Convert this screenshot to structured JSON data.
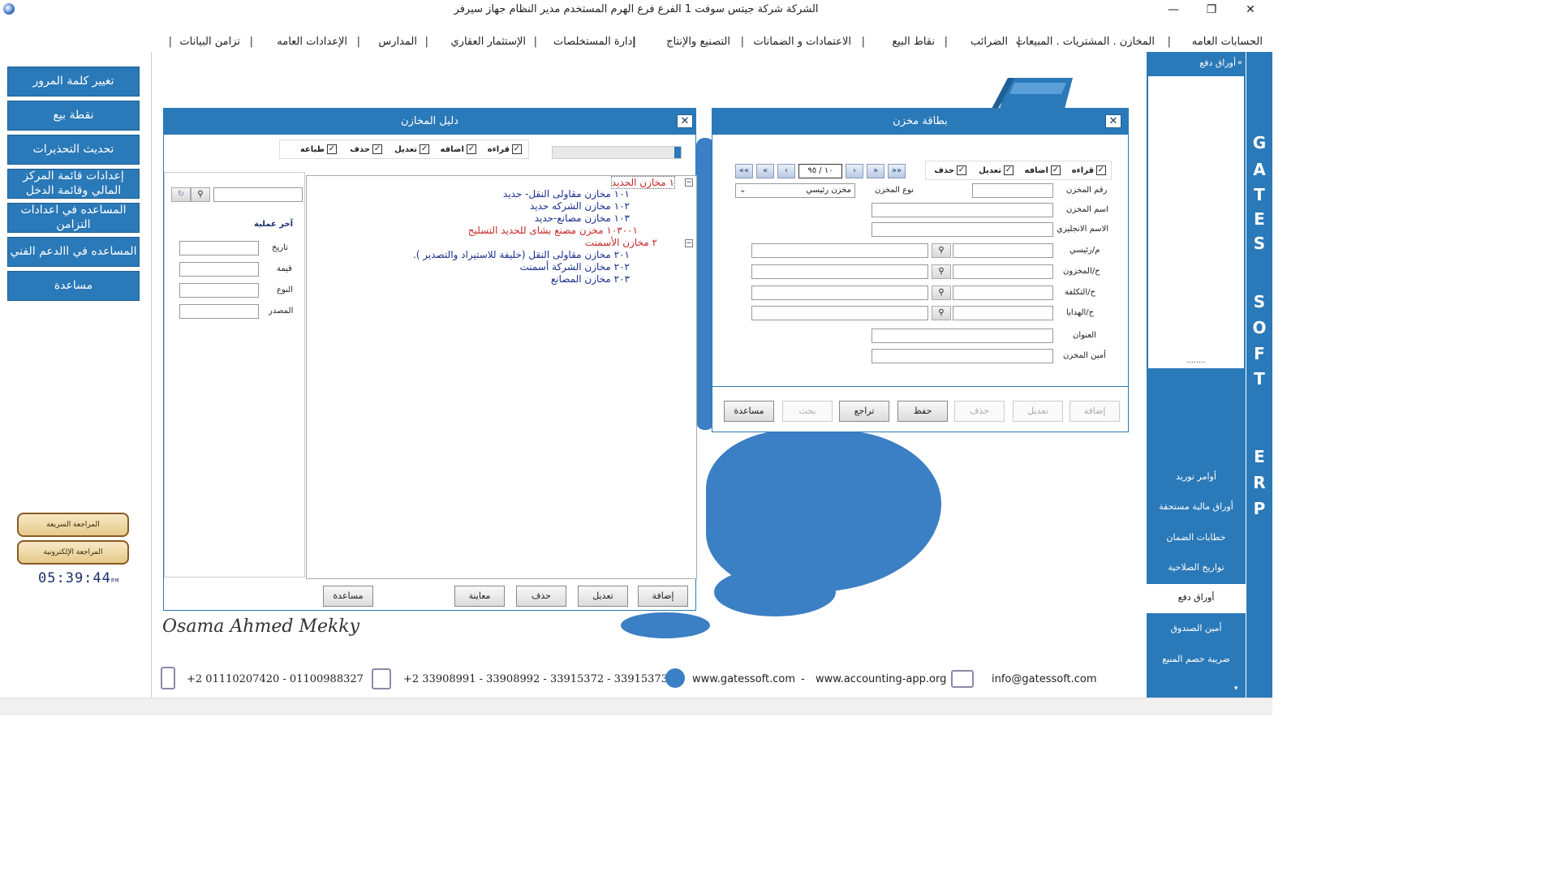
{
  "titlebar": {
    "title": "الشركة شركة جيتس سوفت 1   الفرع فرع الهرم    المستخدم مدير النظام  جهاز سيرفر"
  },
  "menu": [
    "الحسابات العامه",
    "المخازن . المشتريات . المبيعات",
    "الضرائب",
    "نقاط البيع",
    "الاعتمادات و الضمانات",
    "التصنيع والإنتاج",
    "إدارة المستخلصات",
    "الإستثمار العقاري",
    "المدارس",
    "الإعدادات العامه",
    "تزامن البيانات"
  ],
  "left_panel": {
    "buttons": [
      "تغيير كلمة المرور",
      "نقطة بيع",
      "تحديث التحذيرات",
      "إعدادات قائمة المركز المالي وقائمة الدخل",
      "المساعده في اعدادات التزامن",
      "المساعده في االدعم الفني",
      "مساعدة"
    ],
    "quick_review": "المراجعة السريعة",
    "electronic_review": "المراجعة الإلكترونية",
    "clock": "05:39:44",
    "clock_suffix": "PM"
  },
  "right_panel": {
    "header": "أوراق دفع",
    "items": [
      "أوامر توريد",
      "أوراق مالية مستحقة",
      "خطابات الضمان",
      "تواريخ الصلاحية",
      "أوراق دفع",
      "أمين الصندوق",
      "ضريبة خصم المنبع"
    ],
    "dots": "........",
    "brand_letters": [
      "G",
      "A",
      "T",
      "E",
      "S",
      "S",
      "O",
      "F",
      "T",
      "E",
      "R",
      "P"
    ]
  },
  "stores_guide": {
    "title": "دليل المخازن",
    "perms": [
      "قراءه",
      "اضافه",
      "تعديل",
      "حذف",
      "طباعه"
    ],
    "last_op_title": "آخر عملية",
    "last_op_labels": [
      "تاريخ",
      "قيمة",
      "النوع",
      "المصدر"
    ],
    "tree": [
      {
        "text": "١ مخازن الحديد",
        "level": 0,
        "type": "group"
      },
      {
        "text": "١٠١ مخازن مقاولى النقل- حديد",
        "level": 1,
        "type": "store"
      },
      {
        "text": "١٠٢ مخازن الشركه حديد",
        "level": 1,
        "type": "store"
      },
      {
        "text": "١٠٣ مخازن مصانع-حديد",
        "level": 1,
        "type": "store"
      },
      {
        "text": "١٠٣٠٠١ مخزن مصنع بشاى للحديد التسليح",
        "level": 2,
        "type": "leaf"
      },
      {
        "text": "٢ مخازن الأسمنت",
        "level": 0,
        "type": "group"
      },
      {
        "text": "٢٠١ مخازن مقاولى النقل (خليفة للاستيراد والتصدير ).",
        "level": 1,
        "type": "store"
      },
      {
        "text": "٢٠٢ مخازن الشركة أسمنت",
        "level": 1,
        "type": "store"
      },
      {
        "text": "٢٠٣ مخازن المصانع",
        "level": 1,
        "type": "store"
      }
    ],
    "buttons": [
      "إضافة",
      "تعديل",
      "حذف",
      "معاينة",
      "مساعدة"
    ]
  },
  "store_card": {
    "title": "بطاقة مخزن",
    "perms": [
      "قراءه",
      "اضافه",
      "تعديل",
      "حذف"
    ],
    "record_nav": "١٠ / ٩٥",
    "labels": {
      "store_no": "رقم المخزن",
      "store_type": "نوع المخزن",
      "store_name": "اسم المخزن",
      "english_name": "الاسم الانجليزي",
      "main": "م/رئيسي",
      "stores_acc": "ح/المخزون",
      "cost_acc": "ح/التكلفة",
      "gifts_acc": "ح/الهدايا",
      "address": "العنوان",
      "keeper": "أمين المخزن"
    },
    "store_type_value": "مخزن رئيسي",
    "buttons": [
      "إضافة",
      "تعديل",
      "حذف",
      "حفظ",
      "تراجع",
      "بحث",
      "مساعدة"
    ]
  },
  "footer": {
    "signature": "Osama Ahmed Mekky",
    "mobile": "+2 01110207420 - 01100988327",
    "phones": "+2 33908991 - 33908992 - 33915372 - 33915373",
    "web1": "www.gatessoft.com",
    "dash": "-",
    "web2": "www.accounting-app.org",
    "email": "info@gatessoft.com"
  }
}
